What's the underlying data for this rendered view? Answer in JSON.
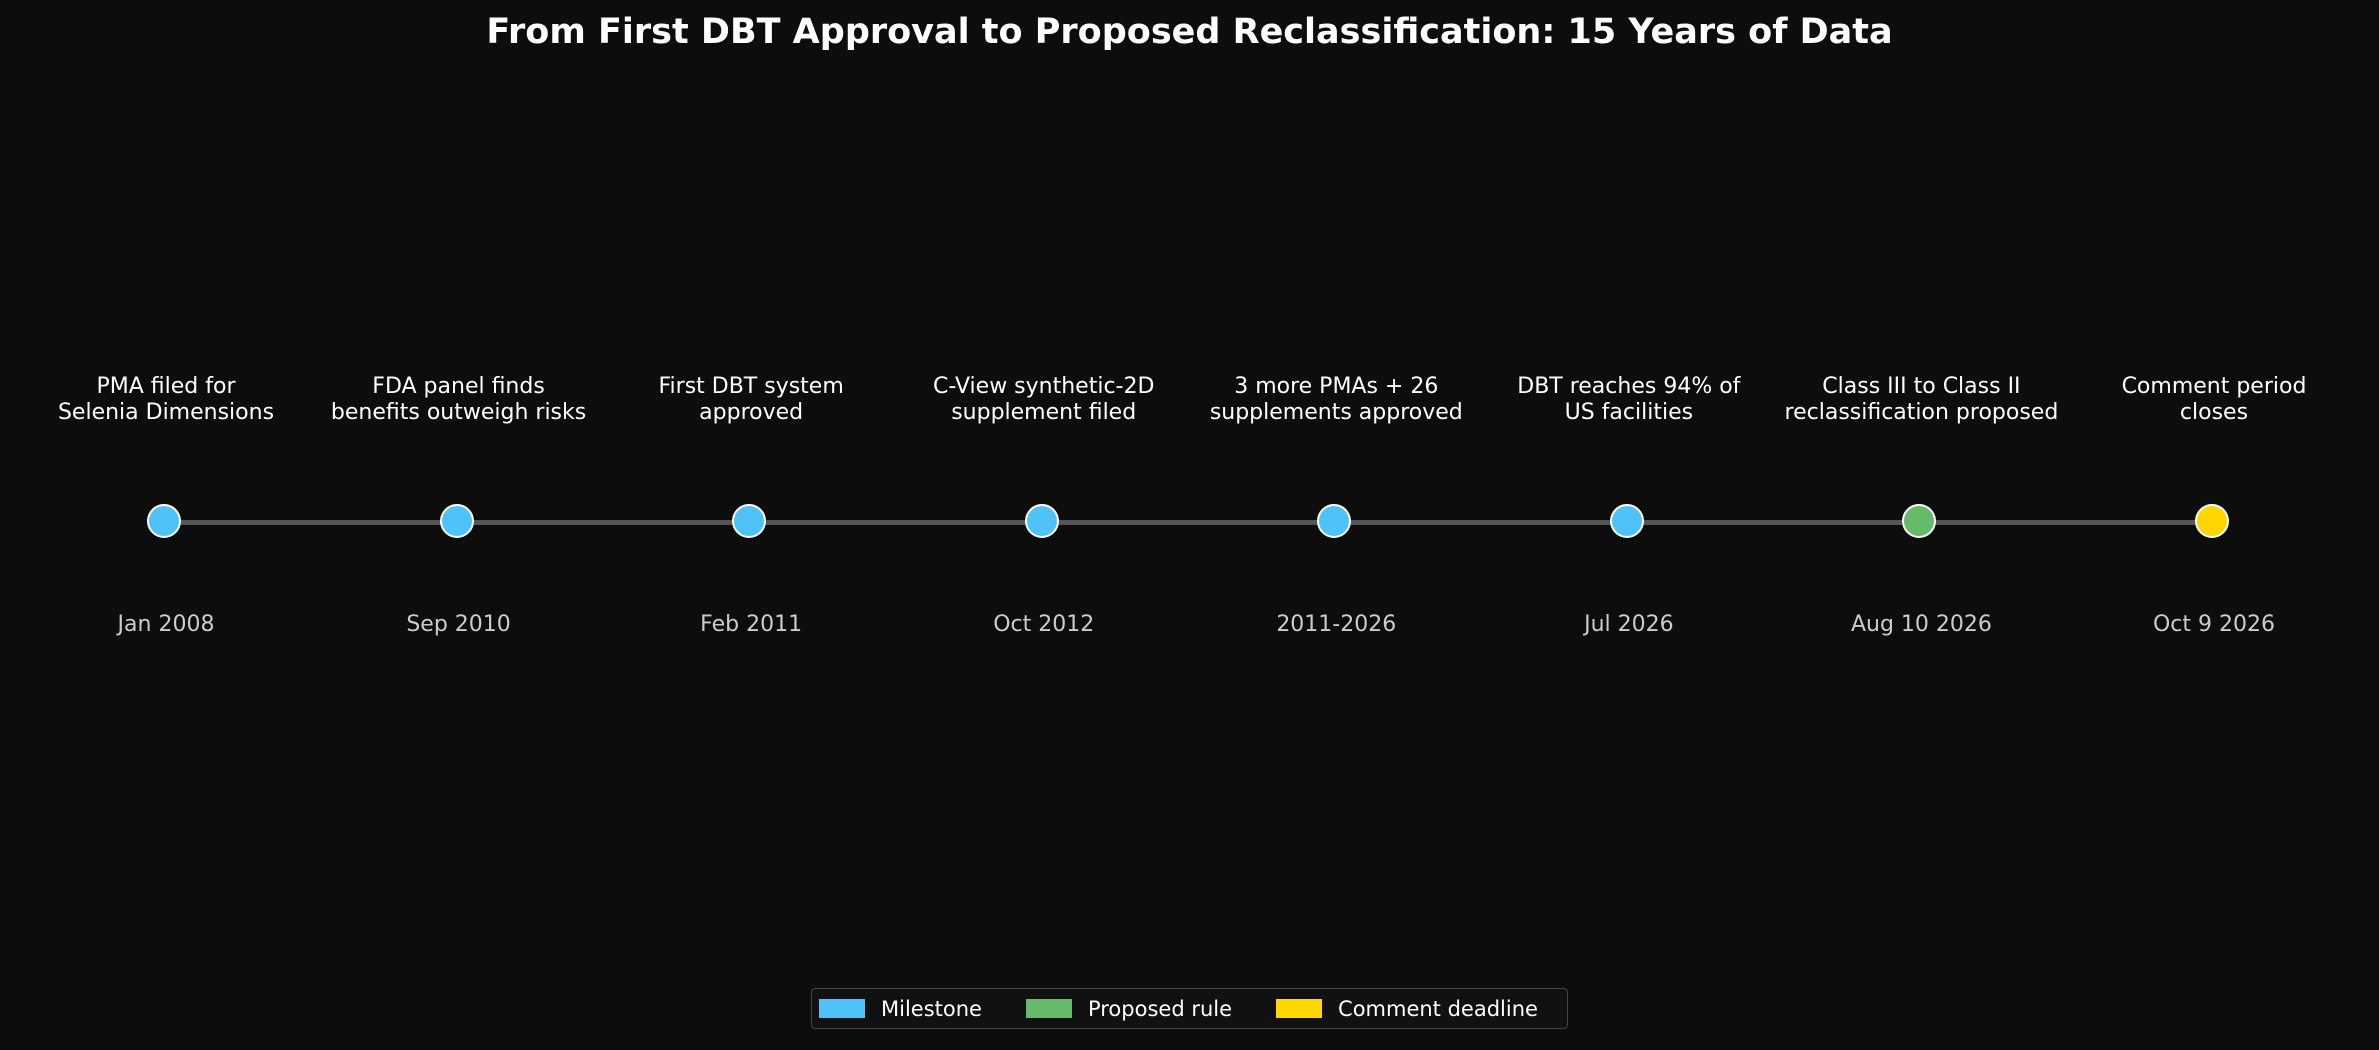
{
  "title": "From First DBT Approval to Proposed Reclassification: 15 Years of Data",
  "colors": {
    "milestone": "#4fc3f7",
    "proposed_rule": "#66bb6a",
    "comment_deadline": "#ffd600",
    "line": "#555555",
    "background": "#0d0d0d"
  },
  "events": [
    {
      "date": "Jan 2008",
      "label": "PMA filed for\nSelenia Dimensions",
      "category": "milestone"
    },
    {
      "date": "Sep 2010",
      "label": "FDA panel finds\nbenefits outweigh risks",
      "category": "milestone"
    },
    {
      "date": "Feb 2011",
      "label": "First DBT system\napproved",
      "category": "milestone"
    },
    {
      "date": "Oct 2012",
      "label": "C-View synthetic-2D\nsupplement filed",
      "category": "milestone"
    },
    {
      "date": "2011-2026",
      "label": "3 more PMAs + 26\nsupplements approved",
      "category": "milestone"
    },
    {
      "date": "Jul 2026",
      "label": "DBT reaches 94% of\nUS facilities",
      "category": "milestone"
    },
    {
      "date": "Aug 10 2026",
      "label": "Class III to Class II\nreclassification proposed",
      "category": "proposed_rule"
    },
    {
      "date": "Oct 9 2026",
      "label": "Comment period\ncloses",
      "category": "comment_deadline"
    }
  ],
  "legend": [
    {
      "label": "Milestone",
      "category": "milestone"
    },
    {
      "label": "Proposed rule",
      "category": "proposed_rule"
    },
    {
      "label": "Comment deadline",
      "category": "comment_deadline"
    }
  ]
}
